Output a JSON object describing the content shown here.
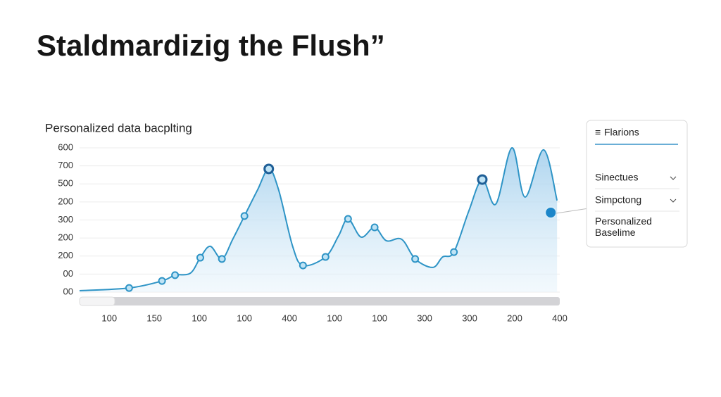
{
  "header": {
    "title": "Staldmardizig the Flush”"
  },
  "chart_data": {
    "type": "line",
    "subtitle": "Personalized data bacplting",
    "color": "#2e94c6",
    "grid": true,
    "xlim": [
      -0.66,
      10
    ],
    "xticks": [
      {
        "value": 0,
        "label": "100"
      },
      {
        "value": 1,
        "label": "150"
      },
      {
        "value": 2,
        "label": "100"
      },
      {
        "value": 3,
        "label": "100"
      },
      {
        "value": 4,
        "label": "400"
      },
      {
        "value": 5,
        "label": "100"
      },
      {
        "value": 6,
        "label": "100"
      },
      {
        "value": 7,
        "label": "300"
      },
      {
        "value": 8,
        "label": "300"
      },
      {
        "value": 9,
        "label": "200"
      },
      {
        "value": 10,
        "label": "400"
      }
    ],
    "ylim": [
      0,
      800
    ],
    "yticks": [
      {
        "value": 0,
        "label": "00"
      },
      {
        "value": 100,
        "label": "00"
      },
      {
        "value": 200,
        "label": "200"
      },
      {
        "value": 300,
        "label": "200"
      },
      {
        "value": 400,
        "label": "300"
      },
      {
        "value": 500,
        "label": "200"
      },
      {
        "value": 600,
        "label": "500"
      },
      700,
      {
        "value": 800,
        "label": "600"
      }
    ],
    "x": [
      -0.66,
      0.44,
      1.17,
      1.46,
      1.8,
      2.02,
      2.24,
      2.5,
      2.74,
      3.0,
      3.29,
      3.54,
      3.76,
      4.07,
      4.3,
      4.8,
      5.09,
      5.3,
      5.59,
      5.89,
      6.15,
      6.49,
      6.79,
      7.18,
      7.4,
      7.65,
      7.98,
      8.28,
      8.58,
      8.94,
      9.23,
      9.64,
      9.94
    ],
    "values": [
      8,
      23,
      62,
      94,
      105,
      191,
      254,
      184,
      293,
      422,
      566,
      683,
      566,
      254,
      148,
      195,
      312,
      406,
      305,
      359,
      285,
      293,
      184,
      137,
      195,
      222,
      449,
      624,
      488,
      800,
      527,
      789,
      508
    ],
    "points": {
      "x": [
        0.44,
        1.17,
        1.46,
        2.02,
        2.5,
        3.0,
        3.54,
        4.3,
        4.8,
        5.3,
        5.89,
        6.79,
        7.65,
        8.28
      ],
      "y": [
        23,
        62,
        94,
        191,
        184,
        422,
        683,
        148,
        195,
        406,
        359,
        184,
        222,
        624
      ]
    },
    "highlight": {
      "x": 9.8,
      "y": 441
    }
  },
  "panel": {
    "title": "Flarions",
    "items": [
      "Sinectues",
      "Simpctong"
    ],
    "note": "Personalized Baselime"
  }
}
